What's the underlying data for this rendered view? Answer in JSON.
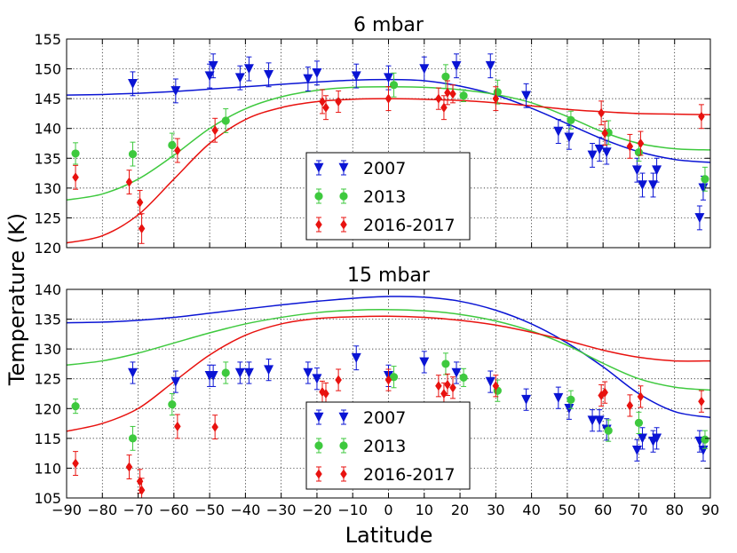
{
  "figure": {
    "ylabel": "Temperature (K)",
    "xlabel": "Latitude",
    "colors": {
      "2007": "#0a14d4",
      "2013": "#3ec93e",
      "2016-2017": "#e8120f"
    }
  },
  "chart_data": [
    {
      "type": "scatter",
      "title": "6 mbar",
      "xlabel": "Latitude",
      "ylabel": "Temperature (K)",
      "xlim": [
        -90,
        90
      ],
      "ylim": [
        120,
        155
      ],
      "xticks": [
        -90,
        -80,
        -70,
        -60,
        -50,
        -40,
        -30,
        -20,
        -10,
        0,
        10,
        20,
        30,
        40,
        50,
        60,
        70,
        80,
        90
      ],
      "xtick_labels": [
        "−90",
        "−80",
        "−70",
        "−60",
        "−50",
        "−40",
        "−30",
        "−20",
        "−10",
        "0",
        "10",
        "20",
        "30",
        "40",
        "50",
        "60",
        "70",
        "80",
        "90"
      ],
      "yticks": [
        120,
        125,
        130,
        135,
        140,
        145,
        150,
        155
      ],
      "ytick_labels": [
        "120",
        "125",
        "130",
        "135",
        "140",
        "145",
        "150",
        "155"
      ],
      "grid": true,
      "legend": {
        "placement": "bottom-center",
        "entries": [
          "2007",
          "2013",
          "2016-2017"
        ]
      },
      "series": [
        {
          "name": "2007",
          "marker": "triangle-down",
          "points": [
            [
              -71.5,
              147.5,
              2
            ],
            [
              -59.5,
              146.3,
              2
            ],
            [
              -50,
              148.8,
              2
            ],
            [
              -49,
              150.5,
              2
            ],
            [
              -41.5,
              148.5,
              2
            ],
            [
              -39,
              150,
              2
            ],
            [
              -33.5,
              149,
              2
            ],
            [
              -22.5,
              148.3,
              2
            ],
            [
              -20,
              149.3,
              2
            ],
            [
              -9,
              148.8,
              2
            ],
            [
              0,
              148.5,
              2
            ],
            [
              10,
              150,
              2
            ],
            [
              19,
              150.5,
              2
            ],
            [
              28.5,
              150.5,
              2
            ],
            [
              38.5,
              145.5,
              2
            ],
            [
              47.5,
              139.5,
              2
            ],
            [
              50.5,
              138.5,
              2
            ],
            [
              57,
              135.5,
              2
            ],
            [
              59,
              136.5,
              2
            ],
            [
              61,
              136,
              2
            ],
            [
              69.5,
              133,
              2
            ],
            [
              71,
              130.5,
              2
            ],
            [
              74,
              130.5,
              2
            ],
            [
              75,
              133,
              2
            ],
            [
              87,
              125,
              2
            ],
            [
              88,
              130,
              2
            ]
          ]
        },
        {
          "name": "2013",
          "marker": "circle",
          "points": [
            [
              -87.5,
              135.8,
              1.8
            ],
            [
              -71.5,
              135.7,
              2
            ],
            [
              -60.5,
              137.2,
              2
            ],
            [
              -45.5,
              141.3,
              2
            ],
            [
              1.5,
              147.3,
              2
            ],
            [
              16,
              148.7,
              2
            ],
            [
              21,
              145.5,
              1
            ],
            [
              30.5,
              146.1,
              2
            ],
            [
              51,
              141.4,
              1.5
            ],
            [
              61.5,
              139.3,
              2
            ],
            [
              70,
              136,
              1.5
            ],
            [
              88.5,
              131.5,
              2
            ]
          ]
        },
        {
          "name": "2016-2017",
          "marker": "diamond",
          "points": [
            [
              -87.5,
              131.8,
              2
            ],
            [
              -72.5,
              131,
              2
            ],
            [
              -69.5,
              127.6,
              2
            ],
            [
              -69,
              123.2,
              2.5
            ],
            [
              -59,
              136.3,
              2
            ],
            [
              -48.5,
              139.7,
              2
            ],
            [
              -18.5,
              144.5,
              2
            ],
            [
              -17.5,
              143.5,
              2
            ],
            [
              -14,
              144.5,
              1.8
            ],
            [
              0,
              145,
              2
            ],
            [
              14,
              145,
              1.8
            ],
            [
              15.5,
              143.5,
              2
            ],
            [
              16.5,
              146,
              2
            ],
            [
              18,
              145.8,
              1.5
            ],
            [
              30,
              145,
              2
            ],
            [
              59.5,
              142.6,
              2
            ],
            [
              60.5,
              139.2,
              2
            ],
            [
              67.5,
              137,
              2
            ],
            [
              70.5,
              137.5,
              2
            ],
            [
              87.5,
              142,
              2
            ]
          ]
        }
      ],
      "fits": [
        {
          "name": "2007",
          "x": [
            -90,
            -80,
            -70,
            -60,
            -50,
            -40,
            -30,
            -20,
            -10,
            0,
            10,
            20,
            30,
            40,
            50,
            60,
            70,
            80,
            90
          ],
          "y": [
            145.6,
            145.7,
            145.9,
            146.2,
            146.6,
            147.0,
            147.4,
            147.8,
            148.1,
            148.2,
            148.0,
            147.1,
            145.6,
            143.4,
            140.8,
            138.2,
            136.1,
            134.8,
            134.3
          ]
        },
        {
          "name": "2013",
          "x": [
            -90,
            -80,
            -70,
            -60,
            -50,
            -40,
            -30,
            -20,
            -10,
            0,
            10,
            20,
            30,
            40,
            50,
            60,
            70,
            80,
            90
          ],
          "y": [
            128.0,
            129.0,
            131.5,
            135.5,
            140.0,
            143.3,
            145.3,
            146.4,
            146.9,
            147.0,
            146.9,
            146.5,
            145.7,
            144.3,
            142.0,
            139.4,
            137.5,
            136.6,
            136.4
          ]
        },
        {
          "name": "2016-2017",
          "x": [
            -90,
            -80,
            -70,
            -60,
            -50,
            -40,
            -30,
            -20,
            -10,
            0,
            10,
            20,
            30,
            40,
            50,
            60,
            70,
            80,
            90
          ],
          "y": [
            120.8,
            122.0,
            125.5,
            131.5,
            137.5,
            141.5,
            143.5,
            144.5,
            144.9,
            145.0,
            144.9,
            144.7,
            144.3,
            143.8,
            143.2,
            142.8,
            142.5,
            142.4,
            142.3
          ]
        }
      ]
    },
    {
      "type": "scatter",
      "title": "15 mbar",
      "xlabel": "Latitude",
      "ylabel": "Temperature (K)",
      "xlim": [
        -90,
        90
      ],
      "ylim": [
        105,
        140
      ],
      "xticks": [
        -90,
        -80,
        -70,
        -60,
        -50,
        -40,
        -30,
        -20,
        -10,
        0,
        10,
        20,
        30,
        40,
        50,
        60,
        70,
        80,
        90
      ],
      "xtick_labels": [
        "−90",
        "−80",
        "−70",
        "−60",
        "−50",
        "−40",
        "−30",
        "−20",
        "−10",
        "0",
        "10",
        "20",
        "30",
        "40",
        "50",
        "60",
        "70",
        "80",
        "90"
      ],
      "yticks": [
        105,
        110,
        115,
        120,
        125,
        130,
        135,
        140
      ],
      "ytick_labels": [
        "105",
        "110",
        "115",
        "120",
        "125",
        "130",
        "135",
        "140"
      ],
      "grid": true,
      "legend": {
        "placement": "bottom-center",
        "entries": [
          "2007",
          "2013",
          "2016-2017"
        ]
      },
      "series": [
        {
          "name": "2007",
          "marker": "triangle-down",
          "points": [
            [
              -71.5,
              126,
              1.8
            ],
            [
              -59.5,
              124.5,
              1.8
            ],
            [
              -50,
              125.5,
              1.8
            ],
            [
              -49,
              125.5,
              1.8
            ],
            [
              -41.5,
              126,
              1.8
            ],
            [
              -39,
              126,
              1.8
            ],
            [
              -33.5,
              126.5,
              1.8
            ],
            [
              -22.5,
              126,
              1.8
            ],
            [
              -20,
              125,
              1.8
            ],
            [
              -9,
              128.5,
              2
            ],
            [
              0,
              125.5,
              1.8
            ],
            [
              10,
              127.8,
              1.8
            ],
            [
              19,
              126,
              1.8
            ],
            [
              28.5,
              124.5,
              1.8
            ],
            [
              38.5,
              121.5,
              1.8
            ],
            [
              47.5,
              121.8,
              1.8
            ],
            [
              50.5,
              120,
              1.8
            ],
            [
              57,
              118,
              1.8
            ],
            [
              59,
              118,
              1.8
            ],
            [
              61,
              116.5,
              1.8
            ],
            [
              69.5,
              113,
              1.8
            ],
            [
              71,
              115,
              1.8
            ],
            [
              74,
              114.5,
              1.8
            ],
            [
              75,
              115,
              1.8
            ],
            [
              87,
              114.5,
              1.8
            ],
            [
              88,
              113,
              1.8
            ]
          ]
        },
        {
          "name": "2013",
          "marker": "circle",
          "points": [
            [
              -87.5,
              120.4,
              1.2
            ],
            [
              -71.5,
              115,
              2
            ],
            [
              -60.5,
              120.7,
              1.8
            ],
            [
              -45.5,
              126,
              1.8
            ],
            [
              1.5,
              125.3,
              1.8
            ],
            [
              16,
              127.5,
              1.8
            ],
            [
              21,
              125.2,
              1.5
            ],
            [
              30.5,
              123,
              1.8
            ],
            [
              51,
              121.5,
              1.5
            ],
            [
              61.5,
              116.3,
              1.8
            ],
            [
              70,
              117.6,
              1.8
            ],
            [
              88.5,
              114.8,
              1.5
            ]
          ]
        },
        {
          "name": "2016-2017",
          "marker": "diamond",
          "points": [
            [
              -87.5,
              110.8,
              2
            ],
            [
              -72.5,
              110.2,
              2
            ],
            [
              -69.5,
              107.8,
              2
            ],
            [
              -69,
              106.3,
              2
            ],
            [
              -59,
              117,
              2
            ],
            [
              -48.5,
              116.9,
              2
            ],
            [
              -18.5,
              122.8,
              1.8
            ],
            [
              -17.5,
              122.5,
              1.8
            ],
            [
              -14,
              124.8,
              1.8
            ],
            [
              0,
              124.8,
              1.8
            ],
            [
              14,
              123.8,
              1.8
            ],
            [
              15.5,
              122.5,
              1.8
            ],
            [
              16.5,
              124,
              1.8
            ],
            [
              18,
              123.5,
              1.8
            ],
            [
              30,
              123.8,
              1.8
            ],
            [
              59.5,
              122.2,
              1.8
            ],
            [
              60.5,
              122.7,
              1.8
            ],
            [
              67.5,
              120.5,
              1.8
            ],
            [
              70.5,
              122,
              1.8
            ],
            [
              87.5,
              121.2,
              1.8
            ]
          ]
        }
      ],
      "fits": [
        {
          "name": "2007",
          "x": [
            -90,
            -80,
            -70,
            -60,
            -50,
            -40,
            -30,
            -20,
            -10,
            0,
            10,
            20,
            30,
            40,
            50,
            60,
            70,
            80,
            90
          ],
          "y": [
            134.4,
            134.5,
            134.8,
            135.3,
            136.0,
            136.7,
            137.4,
            138.0,
            138.5,
            138.8,
            138.7,
            138.0,
            136.5,
            134.2,
            131.0,
            127.0,
            122.5,
            119.5,
            118.5
          ]
        },
        {
          "name": "2013",
          "x": [
            -90,
            -80,
            -70,
            -60,
            -50,
            -40,
            -30,
            -20,
            -10,
            0,
            10,
            20,
            30,
            40,
            50,
            60,
            70,
            80,
            90
          ],
          "y": [
            127.3,
            128.0,
            129.3,
            131.0,
            132.7,
            134.2,
            135.3,
            136.1,
            136.5,
            136.6,
            136.4,
            135.8,
            134.7,
            133.0,
            130.6,
            127.6,
            125.0,
            123.6,
            123.1
          ]
        },
        {
          "name": "2016-2017",
          "x": [
            -90,
            -80,
            -70,
            -60,
            -50,
            -40,
            -30,
            -20,
            -10,
            0,
            10,
            20,
            30,
            40,
            50,
            60,
            70,
            80,
            90
          ],
          "y": [
            116.2,
            117.5,
            120.0,
            124.5,
            129.0,
            132.3,
            134.2,
            135.1,
            135.4,
            135.5,
            135.3,
            134.8,
            134.0,
            132.8,
            131.4,
            129.8,
            128.6,
            128.0,
            128.0
          ]
        }
      ]
    }
  ]
}
